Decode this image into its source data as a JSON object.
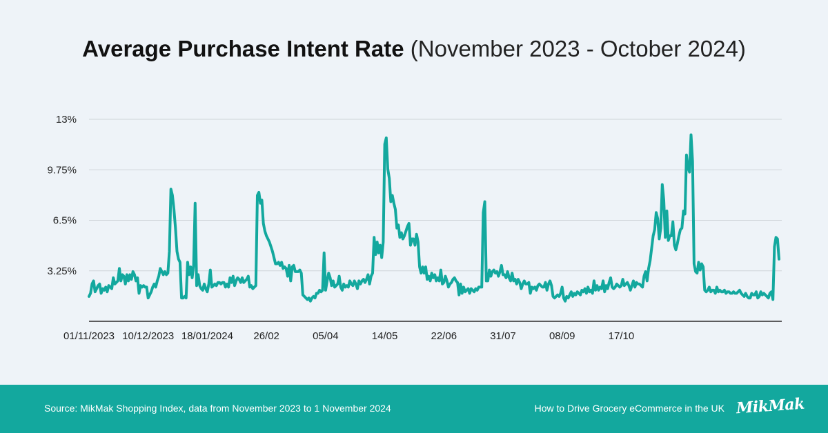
{
  "header": {
    "title_bold": "Average Purchase Intent Rate",
    "title_range": "(November 2023 - October 2024)"
  },
  "colors": {
    "background": "#eef3f8",
    "line": "#13a89e",
    "footer": "#13a89e",
    "grid": "#cfd4d9"
  },
  "chart_data": {
    "type": "line",
    "title": "Average Purchase Intent Rate (November 2023 - October 2024)",
    "xlabel": "",
    "ylabel": "",
    "ylim": [
      0,
      13
    ],
    "yticks": [
      "13%",
      "9.75%",
      "6.5%",
      "3.25%"
    ],
    "ytick_values": [
      13,
      9.75,
      6.5,
      3.25
    ],
    "xticks": [
      "01/11/2023",
      "10/12/2023",
      "18/01/2024",
      "26/02",
      "05/04",
      "14/05",
      "22/06",
      "31/07",
      "08/09",
      "17/10"
    ],
    "xtick_positions": [
      0,
      39,
      78,
      117,
      156,
      195,
      234,
      273,
      312,
      351
    ],
    "grid": true,
    "legend": "none",
    "series": [
      {
        "values": [
          1.6,
          1.8,
          2.4,
          2.6,
          1.9,
          2.1,
          2.3,
          2.4,
          1.8,
          2.1,
          2.0,
          2.2,
          1.9,
          2.3,
          2.2,
          2.1,
          2.8,
          2.4,
          2.5,
          2.6,
          3.4,
          2.6,
          3.0,
          2.9,
          2.4,
          3.0,
          2.6,
          3.0,
          2.7,
          3.2,
          3.0,
          2.6,
          2.8,
          1.8,
          2.3,
          2.2,
          2.3,
          2.2,
          2.2,
          1.5,
          1.7,
          1.9,
          2.2,
          2.4,
          2.2,
          2.6,
          2.9,
          3.4,
          3.2,
          3.0,
          3.2,
          3.0,
          3.1,
          4.5,
          8.5,
          8.1,
          7.2,
          6.0,
          4.5,
          4.0,
          3.8,
          1.5,
          1.5,
          1.6,
          1.5,
          3.8,
          3.0,
          3.5,
          2.8,
          3.6,
          7.6,
          2.3,
          3.0,
          2.3,
          2.1,
          2.0,
          2.4,
          2.1,
          1.9,
          2.4,
          3.3,
          2.2,
          2.3,
          2.4,
          2.3,
          2.5,
          2.5,
          2.4,
          2.5,
          2.5,
          2.2,
          2.4,
          2.2,
          2.8,
          2.5,
          2.9,
          2.3,
          2.6,
          2.8,
          2.7,
          2.5,
          2.8,
          2.5,
          2.6,
          2.7,
          2.9,
          2.2,
          2.3,
          2.1,
          2.2,
          2.3,
          8.1,
          8.3,
          7.6,
          7.8,
          6.3,
          5.8,
          5.5,
          5.3,
          5.1,
          4.8,
          4.5,
          4.1,
          3.7,
          3.7,
          3.8,
          3.6,
          3.8,
          3.4,
          3.5,
          3.4,
          2.9,
          3.6,
          2.6,
          3.5,
          3.6,
          3.2,
          3.2,
          3.2,
          3.3,
          3.1,
          1.7,
          1.6,
          1.5,
          1.4,
          1.5,
          1.3,
          1.5,
          1.6,
          1.5,
          1.8,
          1.8,
          2.0,
          1.9,
          2.0,
          4.4,
          2.0,
          2.6,
          3.1,
          2.8,
          2.3,
          2.6,
          2.2,
          2.3,
          2.4,
          2.9,
          2.2,
          2.0,
          2.4,
          2.2,
          2.3,
          2.2,
          2.6,
          2.4,
          2.3,
          2.6,
          2.4,
          2.1,
          2.6,
          2.4,
          2.6,
          2.7,
          2.5,
          2.7,
          3.0,
          2.4,
          2.9,
          3.1,
          5.4,
          4.3,
          5.1,
          4.4,
          4.9,
          4.1,
          5.1,
          11.4,
          11.8,
          9.8,
          9.2,
          7.7,
          8.1,
          7.6,
          7.2,
          6.0,
          6.2,
          5.4,
          5.7,
          5.3,
          5.5,
          5.8,
          6.1,
          6.3,
          4.9,
          5.3,
          5.3,
          4.9,
          5.6,
          5.1,
          3.5,
          3.1,
          3.5,
          3.1,
          3.5,
          2.7,
          2.9,
          2.6,
          3.1,
          2.8,
          3.0,
          2.6,
          2.8,
          2.6,
          3.3,
          2.4,
          2.5,
          2.9,
          2.6,
          2.2,
          2.4,
          2.5,
          2.7,
          2.8,
          2.6,
          2.5,
          1.7,
          2.4,
          1.8,
          2.2,
          1.9,
          2.0,
          2.1,
          1.8,
          2.1,
          2.0,
          1.9,
          2.1,
          2.0,
          2.2,
          2.2,
          2.2,
          7.0,
          7.7,
          2.6,
          2.6,
          3.3,
          2.9,
          3.2,
          3.3,
          3.1,
          3.2,
          2.9,
          3.2,
          3.6,
          3.0,
          3.0,
          2.8,
          3.2,
          2.8,
          2.6,
          3.1,
          2.6,
          2.7,
          2.4,
          2.7,
          2.5,
          2.1,
          2.4,
          2.6,
          2.4,
          2.4,
          2.5,
          1.8,
          2.2,
          2.1,
          2.2,
          2.0,
          2.3,
          2.4,
          2.3,
          2.2,
          2.2,
          2.5,
          2.0,
          2.4,
          2.6,
          2.3,
          1.6,
          1.5,
          1.6,
          1.7,
          1.6,
          1.8,
          2.2,
          1.5,
          1.3,
          1.6,
          1.5,
          1.7,
          1.9,
          1.6,
          1.8,
          1.7,
          1.9,
          1.8,
          1.7,
          2.0,
          1.9,
          2.1,
          1.8,
          2.2,
          1.9,
          2.0,
          1.8,
          2.6,
          2.0,
          2.3,
          2.0,
          2.2,
          2.1,
          2.6,
          1.9,
          2.3,
          2.1,
          2.5,
          2.8,
          2.2,
          2.1,
          2.2,
          2.4,
          2.3,
          2.2,
          2.3,
          2.7,
          2.3,
          2.4,
          2.5,
          2.3,
          2.0,
          2.3,
          2.6,
          2.2,
          2.5,
          2.4,
          2.4,
          2.3,
          2.2,
          2.9,
          3.2,
          2.6,
          3.4,
          3.9,
          4.7,
          5.5,
          5.9,
          7.0,
          6.6,
          5.3,
          6.0,
          8.8,
          7.8,
          5.4,
          7.1,
          5.2,
          5.5,
          5.5,
          6.4,
          4.9,
          4.6,
          5.0,
          5.5,
          5.9,
          6.0,
          7.1,
          6.9,
          10.7,
          9.9,
          9.6,
          12.0,
          10.3,
          3.7,
          3.2,
          3.1,
          3.8,
          3.3,
          3.7,
          3.5,
          2.0,
          1.9,
          2.0,
          2.2,
          1.9,
          2.0,
          2.0,
          1.8,
          2.2,
          1.9,
          2.0,
          1.9,
          1.9,
          2.0,
          1.8,
          1.9,
          1.9,
          1.8,
          1.8,
          1.9,
          1.8,
          1.8,
          1.9,
          2.0,
          1.8,
          1.7,
          1.6,
          1.8,
          1.6,
          1.5,
          1.5,
          1.8,
          1.7,
          1.7,
          1.9,
          1.5,
          1.6,
          1.9,
          1.7,
          1.8,
          1.7,
          1.6,
          1.5,
          1.8,
          1.9,
          1.4,
          4.8,
          5.4,
          5.3,
          4.0
        ]
      }
    ]
  },
  "footer": {
    "source": "Source: MikMak Shopping Index, data from November 2023 to 1 November 2024",
    "guide": "How to Drive Grocery eCommerce in the UK",
    "logo": "MikMak"
  }
}
